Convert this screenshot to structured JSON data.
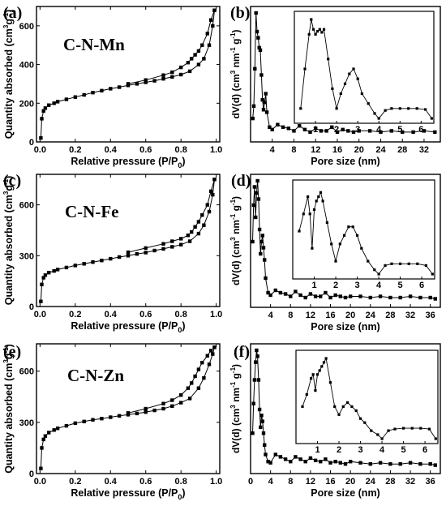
{
  "figure": {
    "panels": [
      {
        "letter": "(a)",
        "sample": "C-N-Mn"
      },
      {
        "letter": "(b)",
        "sample": ""
      },
      {
        "letter": "(c)",
        "sample": "C-N-Fe"
      },
      {
        "letter": "(d)",
        "sample": ""
      },
      {
        "letter": "(e)",
        "sample": "C-N-Zn"
      },
      {
        "letter": "(f)",
        "sample": ""
      }
    ]
  },
  "chart_data": [
    {
      "type": "scatter",
      "panel": "(a)",
      "title": "C-N-Mn",
      "xlabel": "Relative pressure (P/P0)",
      "ylabel": "Quantity absorbed (cm3g-1)",
      "xlim": [
        -0.02,
        1.02
      ],
      "ylim": [
        0,
        700
      ],
      "xticks": [
        "0.0",
        "0.2",
        "0.4",
        "0.6",
        "0.8",
        "1.0"
      ],
      "yticks": [
        "0",
        "200",
        "400",
        "600"
      ],
      "series": [
        {
          "x": [
            0.005,
            0.01,
            0.02,
            0.03,
            0.05,
            0.08,
            0.1,
            0.15,
            0.2,
            0.25,
            0.3,
            0.35,
            0.4,
            0.45,
            0.5,
            0.55,
            0.6,
            0.65,
            0.7,
            0.75,
            0.8,
            0.85,
            0.9,
            0.93,
            0.96,
            0.98,
            0.99
          ],
          "y": [
            20,
            120,
            160,
            175,
            190,
            200,
            208,
            220,
            232,
            243,
            255,
            265,
            275,
            283,
            292,
            300,
            308,
            316,
            326,
            336,
            348,
            365,
            400,
            430,
            500,
            600,
            680
          ]
        },
        {
          "x": [
            0.99,
            0.97,
            0.95,
            0.92,
            0.9,
            0.88,
            0.86,
            0.84,
            0.8,
            0.75,
            0.7,
            0.6,
            0.5
          ],
          "y": [
            680,
            630,
            560,
            500,
            470,
            450,
            430,
            410,
            385,
            360,
            345,
            320,
            300
          ]
        }
      ]
    },
    {
      "type": "line",
      "panel": "(b)",
      "xlabel": "Pore size (nm)",
      "ylabel": "dV(d) (cm3nm-1g-1)",
      "xlim": [
        0,
        35
      ],
      "xticks": [
        "4",
        "8",
        "12",
        "16",
        "20",
        "24",
        "28",
        "32"
      ],
      "series": [
        {
          "x": [
            0.4,
            0.6,
            0.8,
            1.0,
            1.2,
            1.4,
            1.6,
            1.8,
            2.0,
            2.2,
            2.4,
            2.6,
            2.8,
            3.0,
            3.5,
            4,
            5,
            6,
            7,
            8,
            9,
            10,
            11,
            12,
            13,
            14,
            15,
            16,
            17,
            18,
            19,
            20,
            22,
            24,
            26,
            28,
            30,
            32,
            34
          ],
          "y": [
            0.15,
            0.25,
            0.55,
            1.0,
            0.85,
            0.8,
            0.72,
            0.7,
            0.5,
            0.3,
            0.22,
            0.28,
            0.35,
            0.2,
            0.08,
            0.06,
            0.1,
            0.08,
            0.07,
            0.05,
            0.09,
            0.06,
            0.04,
            0.07,
            0.05,
            0.05,
            0.08,
            0.04,
            0.06,
            0.05,
            0.04,
            0.05,
            0.05,
            0.04,
            0.05,
            0.04,
            0.04,
            0.05,
            0.04
          ]
        }
      ],
      "inset": {
        "xlim": [
          0,
          6.5
        ],
        "xticks": [
          "1",
          "2",
          "3",
          "4",
          "5",
          "6"
        ]
      }
    },
    {
      "type": "scatter",
      "panel": "(c)",
      "title": "C-N-Fe",
      "xlabel": "Relative pressure (P/P0)",
      "ylabel": "Quantity absorbed (cm3g-1)",
      "xlim": [
        -0.02,
        1.02
      ],
      "ylim": [
        0,
        780
      ],
      "xticks": [
        "0.0",
        "0.2",
        "0.4",
        "0.6",
        "0.8",
        "1.0"
      ],
      "yticks": [
        "0",
        "300",
        "600"
      ],
      "series": [
        {
          "x": [
            0.005,
            0.01,
            0.02,
            0.03,
            0.05,
            0.08,
            0.1,
            0.15,
            0.2,
            0.25,
            0.3,
            0.35,
            0.4,
            0.45,
            0.5,
            0.55,
            0.6,
            0.65,
            0.7,
            0.75,
            0.8,
            0.85,
            0.9,
            0.93,
            0.96,
            0.98,
            0.99
          ],
          "y": [
            30,
            130,
            170,
            185,
            200,
            210,
            218,
            230,
            242,
            252,
            262,
            272,
            282,
            292,
            300,
            310,
            318,
            330,
            340,
            352,
            365,
            385,
            430,
            480,
            560,
            660,
            750
          ]
        },
        {
          "x": [
            0.99,
            0.97,
            0.95,
            0.92,
            0.9,
            0.88,
            0.86,
            0.84,
            0.8,
            0.75,
            0.7,
            0.6,
            0.5
          ],
          "y": [
            750,
            680,
            600,
            540,
            500,
            470,
            440,
            420,
            400,
            385,
            370,
            345,
            320
          ]
        }
      ]
    },
    {
      "type": "line",
      "panel": "(d)",
      "xlabel": "Pore size (nm)",
      "ylabel": "dV(d) (cm3nm-1g-1)",
      "xlim": [
        0,
        38
      ],
      "xticks": [
        "4",
        "8",
        "12",
        "16",
        "20",
        "24",
        "28",
        "32",
        "36"
      ],
      "series": [
        {
          "x": [
            0.4,
            0.6,
            0.8,
            1.0,
            1.2,
            1.4,
            1.6,
            1.8,
            2.0,
            2.2,
            2.4,
            2.6,
            2.8,
            3.0,
            3.5,
            4,
            5,
            6,
            7,
            8,
            9,
            10,
            11,
            12,
            13,
            14,
            15,
            16,
            17,
            18,
            19,
            20,
            22,
            24,
            26,
            28,
            30,
            32,
            34,
            36,
            37
          ],
          "y": [
            0.5,
            0.8,
            0.95,
            0.7,
            0.9,
            1.0,
            0.85,
            0.6,
            0.4,
            0.5,
            0.55,
            0.45,
            0.35,
            0.2,
            0.08,
            0.06,
            0.1,
            0.08,
            0.07,
            0.05,
            0.09,
            0.06,
            0.04,
            0.07,
            0.05,
            0.05,
            0.08,
            0.04,
            0.06,
            0.05,
            0.04,
            0.05,
            0.05,
            0.04,
            0.05,
            0.04,
            0.04,
            0.05,
            0.04,
            0.04,
            0.03
          ]
        }
      ],
      "inset": {
        "xlim": [
          0,
          6.5
        ],
        "xticks": [
          "1",
          "2",
          "3",
          "4",
          "5",
          "6"
        ]
      }
    },
    {
      "type": "scatter",
      "panel": "(e)",
      "title": "C-N-Zn",
      "xlabel": "Relative pressure (P/P0)",
      "ylabel": "Quantity absorbed (cm3g-1)",
      "xlim": [
        -0.02,
        1.02
      ],
      "ylim": [
        0,
        760
      ],
      "xticks": [
        "0.0",
        "0.2",
        "0.4",
        "0.6",
        "0.8",
        "1.0"
      ],
      "yticks": [
        "0",
        "300",
        "600"
      ],
      "series": [
        {
          "x": [
            0.005,
            0.01,
            0.02,
            0.03,
            0.05,
            0.08,
            0.1,
            0.15,
            0.2,
            0.25,
            0.3,
            0.35,
            0.4,
            0.45,
            0.5,
            0.55,
            0.6,
            0.65,
            0.7,
            0.75,
            0.8,
            0.85,
            0.9,
            0.93,
            0.96,
            0.98,
            0.99
          ],
          "y": [
            30,
            150,
            200,
            220,
            240,
            255,
            265,
            280,
            295,
            305,
            315,
            322,
            330,
            338,
            345,
            352,
            360,
            370,
            380,
            395,
            415,
            440,
            500,
            560,
            640,
            700,
            740
          ]
        },
        {
          "x": [
            0.99,
            0.97,
            0.95,
            0.92,
            0.9,
            0.88,
            0.86,
            0.84,
            0.8,
            0.75,
            0.7,
            0.6,
            0.5
          ],
          "y": [
            740,
            720,
            690,
            650,
            610,
            570,
            530,
            500,
            460,
            430,
            410,
            380,
            355
          ]
        }
      ]
    },
    {
      "type": "line",
      "panel": "(f)",
      "xlabel": "Pore size (nm)",
      "ylabel": "dV(d) (cm3nm-1g-1)",
      "xlim": [
        0,
        38
      ],
      "xticks": [
        "0",
        "4",
        "8",
        "12",
        "16",
        "20",
        "24",
        "28",
        "32",
        "36"
      ],
      "series": [
        {
          "x": [
            0.4,
            0.6,
            0.8,
            1.0,
            1.2,
            1.4,
            1.6,
            1.8,
            2.0,
            2.2,
            2.4,
            2.6,
            2.8,
            3.0,
            3.5,
            4,
            5,
            6,
            7,
            8,
            9,
            10,
            11,
            12,
            13,
            14,
            15,
            16,
            17,
            18,
            19,
            20,
            22,
            24,
            26,
            28,
            30,
            32,
            34,
            36,
            37
          ],
          "y": [
            0.3,
            0.55,
            0.75,
            0.9,
            1.0,
            0.95,
            0.75,
            0.5,
            0.35,
            0.45,
            0.4,
            0.3,
            0.2,
            0.12,
            0.06,
            0.05,
            0.12,
            0.1,
            0.08,
            0.06,
            0.1,
            0.08,
            0.06,
            0.09,
            0.07,
            0.06,
            0.08,
            0.05,
            0.06,
            0.05,
            0.04,
            0.06,
            0.05,
            0.04,
            0.05,
            0.04,
            0.04,
            0.05,
            0.04,
            0.04,
            0.03
          ]
        }
      ],
      "inset": {
        "xlim": [
          0,
          6.5
        ],
        "xticks": [
          "1",
          "2",
          "3",
          "4",
          "5",
          "6"
        ]
      }
    }
  ],
  "insets": [
    {
      "x": [
        0.3,
        0.5,
        0.7,
        0.8,
        0.9,
        1.0,
        1.1,
        1.2,
        1.3,
        1.4,
        1.6,
        1.8,
        2.0,
        2.2,
        2.4,
        2.6,
        2.8,
        3.0,
        3.2,
        3.5,
        3.8,
        4.0,
        4.3,
        4.6,
        5.0,
        5.4,
        5.8,
        6.2,
        6.5
      ],
      "y": [
        0.1,
        0.5,
        0.85,
        1.0,
        0.9,
        0.85,
        0.88,
        0.9,
        0.87,
        0.9,
        0.6,
        0.3,
        0.1,
        0.25,
        0.35,
        0.45,
        0.5,
        0.4,
        0.25,
        0.15,
        0.05,
        0.0,
        0.08,
        0.1,
        0.1,
        0.1,
        0.1,
        0.09,
        0.0
      ]
    },
    {
      "x": [
        0.3,
        0.5,
        0.7,
        0.8,
        0.9,
        1.0,
        1.1,
        1.2,
        1.3,
        1.4,
        1.6,
        1.8,
        2.0,
        2.2,
        2.4,
        2.6,
        2.8,
        3.0,
        3.2,
        3.5,
        3.8,
        4.0,
        4.3,
        4.6,
        5.0,
        5.4,
        5.8,
        6.2,
        6.5
      ],
      "y": [
        0.5,
        0.7,
        0.9,
        0.7,
        0.3,
        0.75,
        0.85,
        0.9,
        0.95,
        0.85,
        0.6,
        0.35,
        0.15,
        0.35,
        0.45,
        0.55,
        0.55,
        0.45,
        0.3,
        0.15,
        0.05,
        0.0,
        0.1,
        0.12,
        0.12,
        0.12,
        0.12,
        0.1,
        0.0
      ]
    },
    {
      "x": [
        0.3,
        0.5,
        0.7,
        0.8,
        0.9,
        1.0,
        1.1,
        1.2,
        1.3,
        1.4,
        1.6,
        1.8,
        2.0,
        2.2,
        2.4,
        2.6,
        2.8,
        3.0,
        3.2,
        3.5,
        3.8,
        4.0,
        4.3,
        4.6,
        5.0,
        5.4,
        5.8,
        6.2,
        6.5
      ],
      "y": [
        0.4,
        0.55,
        0.75,
        0.8,
        0.6,
        0.8,
        0.85,
        0.9,
        0.95,
        1.0,
        0.7,
        0.4,
        0.3,
        0.4,
        0.45,
        0.4,
        0.35,
        0.25,
        0.2,
        0.1,
        0.05,
        0.0,
        0.1,
        0.12,
        0.13,
        0.13,
        0.13,
        0.12,
        0.0
      ]
    }
  ]
}
